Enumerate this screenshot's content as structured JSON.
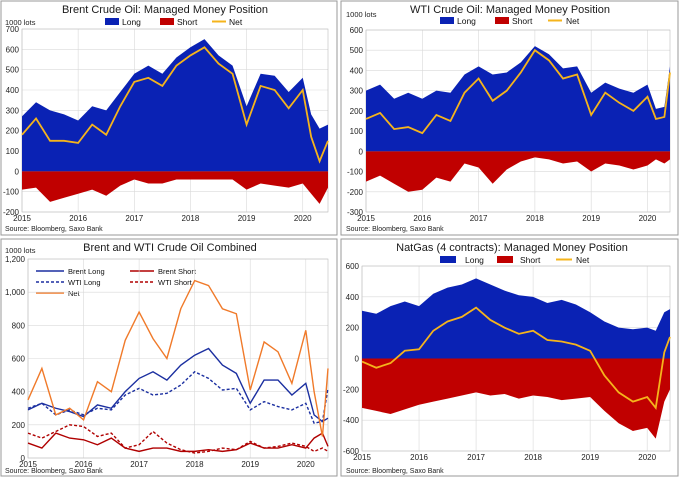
{
  "colors": {
    "long": "#0a22b4",
    "short": "#c00000",
    "net": "#f5b41c",
    "combined_net": "#f07a2a",
    "brent_long": "#1b2fa0",
    "wti_long": "#1b2fa0",
    "brent_short": "#b00000",
    "wti_short": "#b00000"
  },
  "panels": [
    {
      "id": "brent",
      "title": "Brent Crude Oil: Managed Money Position",
      "units": "1000 lots",
      "source": "Source: Bloomberg, Saxo Bank",
      "legend": [
        "Long",
        "Short",
        "Net"
      ],
      "x_ticks": [
        "2015",
        "2016",
        "2017",
        "2018",
        "2019",
        "2020"
      ],
      "y_ticks": [
        "700",
        "600",
        "500",
        "400",
        "300",
        "200",
        "100",
        "0",
        "-100",
        "-200"
      ]
    },
    {
      "id": "wti",
      "title": "WTI Crude Oil: Managed Money Position",
      "units": "1000 lots",
      "source": "Source: Bloomberg, Saxo Bank",
      "legend": [
        "Long",
        "Short",
        "Net"
      ],
      "x_ticks": [
        "2015",
        "2016",
        "2017",
        "2018",
        "2019",
        "2020"
      ],
      "y_ticks": [
        "600",
        "500",
        "400",
        "300",
        "200",
        "100",
        "0",
        "-100",
        "-200",
        "-300"
      ]
    },
    {
      "id": "combined",
      "title": "Brent and WTI Crude Oil Combined",
      "units": "1000 lots",
      "source": "Source: Bloomberg, Saxo Bank",
      "legend": [
        "Brent Long",
        "Brent Short",
        "WTI Long",
        "WTI Short",
        "Net"
      ],
      "x_ticks": [
        "2015",
        "2016",
        "2017",
        "2018",
        "2019",
        "2020"
      ],
      "y_ticks": [
        "1,200",
        "1,000",
        "800",
        "600",
        "400",
        "200",
        "0"
      ]
    },
    {
      "id": "natgas",
      "title": "NatGas (4 contracts): Managed Money Position",
      "units": "",
      "source": "Source: Bloomberg, Saxo Bank",
      "legend": [
        "Long",
        "Short",
        "Net"
      ],
      "x_ticks": [
        "2015",
        "2016",
        "2017",
        "2018",
        "2019",
        "2020"
      ],
      "y_ticks": [
        "600",
        "400",
        "200",
        "0",
        "-200",
        "-400",
        "-600"
      ]
    }
  ],
  "chart_data": [
    {
      "type": "area",
      "title": "Brent Crude Oil: Managed Money Position",
      "ylabel": "1000 lots",
      "xlim": [
        2015.0,
        2020.45
      ],
      "ylim": [
        -200,
        700
      ],
      "x": [
        2015.0,
        2015.25,
        2015.5,
        2015.75,
        2016.0,
        2016.25,
        2016.5,
        2016.75,
        2017.0,
        2017.25,
        2017.5,
        2017.75,
        2018.0,
        2018.25,
        2018.5,
        2018.75,
        2019.0,
        2019.25,
        2019.5,
        2019.75,
        2020.0,
        2020.15,
        2020.3,
        2020.45
      ],
      "series": [
        {
          "name": "Long",
          "values": [
            270,
            340,
            300,
            280,
            250,
            320,
            300,
            390,
            480,
            520,
            480,
            560,
            610,
            650,
            570,
            520,
            320,
            480,
            470,
            390,
            460,
            280,
            210,
            230
          ]
        },
        {
          "name": "Short",
          "values": [
            -90,
            -80,
            -150,
            -130,
            -110,
            -90,
            -120,
            -70,
            -40,
            -60,
            -60,
            -40,
            -40,
            -40,
            -40,
            -40,
            -90,
            -60,
            -70,
            -80,
            -60,
            -110,
            -160,
            -80
          ]
        },
        {
          "name": "Net",
          "values": [
            180,
            260,
            150,
            150,
            140,
            230,
            180,
            320,
            440,
            460,
            420,
            520,
            570,
            610,
            530,
            480,
            230,
            420,
            400,
            310,
            400,
            170,
            50,
            150
          ]
        }
      ]
    },
    {
      "type": "area",
      "title": "WTI Crude Oil: Managed Money Position",
      "ylabel": "1000 lots",
      "xlim": [
        2015.0,
        2020.4
      ],
      "ylim": [
        -300,
        600
      ],
      "x": [
        2015.0,
        2015.25,
        2015.5,
        2015.75,
        2016.0,
        2016.25,
        2016.5,
        2016.75,
        2017.0,
        2017.25,
        2017.5,
        2017.75,
        2018.0,
        2018.25,
        2018.5,
        2018.75,
        2019.0,
        2019.25,
        2019.5,
        2019.75,
        2020.0,
        2020.15,
        2020.3,
        2020.4
      ],
      "series": [
        {
          "name": "Long",
          "values": [
            300,
            330,
            260,
            290,
            260,
            300,
            290,
            380,
            420,
            380,
            390,
            440,
            520,
            480,
            410,
            420,
            290,
            340,
            310,
            290,
            330,
            210,
            220,
            420
          ]
        },
        {
          "name": "Short",
          "values": [
            -150,
            -120,
            -160,
            -200,
            -190,
            -130,
            -150,
            -60,
            -80,
            -160,
            -90,
            -50,
            -30,
            -40,
            -60,
            -50,
            -100,
            -60,
            -70,
            -90,
            -70,
            -40,
            -60,
            -40
          ]
        },
        {
          "name": "Net",
          "values": [
            160,
            190,
            110,
            120,
            90,
            180,
            150,
            290,
            360,
            250,
            300,
            390,
            500,
            450,
            360,
            380,
            180,
            290,
            240,
            200,
            270,
            160,
            170,
            390
          ]
        }
      ]
    },
    {
      "type": "line",
      "title": "Brent and WTI Crude Oil Combined",
      "ylabel": "1000 lots",
      "xlim": [
        2015.0,
        2020.4
      ],
      "ylim": [
        0,
        1200
      ],
      "x": [
        2015.0,
        2015.25,
        2015.5,
        2015.75,
        2016.0,
        2016.25,
        2016.5,
        2016.75,
        2017.0,
        2017.25,
        2017.5,
        2017.75,
        2018.0,
        2018.25,
        2018.5,
        2018.75,
        2019.0,
        2019.25,
        2019.5,
        2019.75,
        2020.0,
        2020.15,
        2020.3,
        2020.4
      ],
      "series": [
        {
          "name": "Brent Long",
          "values": [
            290,
            330,
            300,
            280,
            250,
            320,
            300,
            400,
            480,
            520,
            470,
            560,
            620,
            660,
            560,
            510,
            330,
            470,
            470,
            380,
            450,
            260,
            220,
            240
          ]
        },
        {
          "name": "Brent Short",
          "values": [
            90,
            60,
            150,
            120,
            110,
            80,
            120,
            60,
            40,
            60,
            60,
            40,
            40,
            50,
            40,
            50,
            90,
            60,
            60,
            80,
            60,
            120,
            150,
            70
          ]
        },
        {
          "name": "WTI Long",
          "values": [
            300,
            330,
            260,
            290,
            260,
            300,
            290,
            380,
            420,
            380,
            390,
            440,
            520,
            480,
            410,
            420,
            290,
            340,
            310,
            290,
            330,
            210,
            220,
            420
          ]
        },
        {
          "name": "WTI Short",
          "values": [
            150,
            120,
            160,
            200,
            190,
            130,
            150,
            60,
            80,
            160,
            90,
            50,
            30,
            40,
            60,
            50,
            100,
            60,
            70,
            90,
            70,
            40,
            60,
            40
          ]
        },
        {
          "name": "Net",
          "values": [
            350,
            540,
            260,
            300,
            230,
            460,
            400,
            710,
            880,
            720,
            600,
            900,
            1070,
            1040,
            900,
            870,
            410,
            700,
            640,
            450,
            770,
            400,
            130,
            540
          ]
        }
      ]
    },
    {
      "type": "area",
      "title": "NatGas (4 contracts): Managed Money Position",
      "xlim": [
        2015.0,
        2020.4
      ],
      "ylim": [
        -600,
        600
      ],
      "x": [
        2015.0,
        2015.25,
        2015.5,
        2015.75,
        2016.0,
        2016.25,
        2016.5,
        2016.75,
        2017.0,
        2017.25,
        2017.5,
        2017.75,
        2018.0,
        2018.25,
        2018.5,
        2018.75,
        2019.0,
        2019.25,
        2019.5,
        2019.75,
        2020.0,
        2020.15,
        2020.3,
        2020.4
      ],
      "series": [
        {
          "name": "Long",
          "values": [
            310,
            290,
            340,
            370,
            340,
            420,
            460,
            480,
            520,
            480,
            440,
            410,
            400,
            360,
            380,
            350,
            300,
            240,
            200,
            190,
            200,
            180,
            300,
            320
          ]
        },
        {
          "name": "Short",
          "values": [
            -320,
            -340,
            -360,
            -330,
            -300,
            -280,
            -260,
            -240,
            -220,
            -240,
            -230,
            -260,
            -240,
            -250,
            -270,
            -260,
            -250,
            -340,
            -420,
            -470,
            -450,
            -520,
            -280,
            -200
          ]
        },
        {
          "name": "Net",
          "values": [
            -20,
            -60,
            -30,
            50,
            60,
            180,
            240,
            270,
            330,
            250,
            200,
            160,
            180,
            120,
            110,
            90,
            50,
            -110,
            -220,
            -280,
            -250,
            -320,
            40,
            140
          ]
        }
      ]
    }
  ]
}
